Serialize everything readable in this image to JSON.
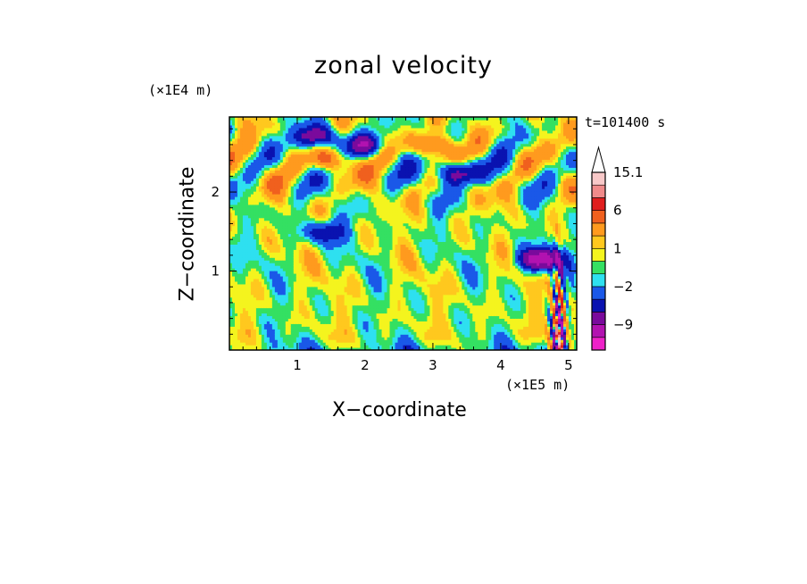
{
  "chart_data": {
    "type": "heatmap",
    "title": "zonal velocity",
    "xlabel": "X−coordinate",
    "ylabel": "Z−coordinate",
    "x_unit": "(×1E5 m)",
    "y_unit": "(×1E4 m)",
    "time_label": "t=101400 s",
    "xlim": [
      0,
      5.12
    ],
    "ylim": [
      0,
      2.95
    ],
    "x_ticks": [
      1,
      2,
      3,
      4,
      5
    ],
    "y_ticks": [
      1,
      2
    ],
    "colorbar": {
      "levels": [
        -15,
        -12,
        -9,
        -6,
        -4,
        -2,
        -1,
        0,
        1,
        2,
        4,
        6,
        9,
        12,
        15.1
      ],
      "labels": [
        {
          "text": "15.1",
          "value": 15.1
        },
        {
          "text": "6",
          "value": 6
        },
        {
          "text": "1",
          "value": 1
        },
        {
          "text": "−2",
          "value": -2
        },
        {
          "text": "−9",
          "value": -9
        }
      ],
      "colors": [
        "#ee22c8",
        "#b212b0",
        "#7a0a9c",
        "#0a12b0",
        "#1a58e8",
        "#2ee0f0",
        "#34e062",
        "#f4f41e",
        "#ffc81e",
        "#ff9a1e",
        "#f0601e",
        "#e01e1e",
        "#f08a8a",
        "#f8c8c8"
      ],
      "extend_top": "#ffffff"
    },
    "features": [
      {
        "kind": "blob",
        "x": 1.3,
        "z": 2.7,
        "u": -8
      },
      {
        "kind": "blob",
        "x": 2.0,
        "z": 2.6,
        "u": -6
      },
      {
        "kind": "blob",
        "x": 3.35,
        "z": 2.25,
        "u": -9
      },
      {
        "kind": "blob",
        "x": 4.6,
        "z": 1.15,
        "u": -12
      },
      {
        "kind": "blob",
        "x": 1.4,
        "z": 1.5,
        "u": -6
      },
      {
        "kind": "blob",
        "x": 1.5,
        "z": 2.4,
        "u": 5
      },
      {
        "kind": "blob",
        "x": 3.0,
        "z": 2.6,
        "u": 6
      }
    ]
  }
}
